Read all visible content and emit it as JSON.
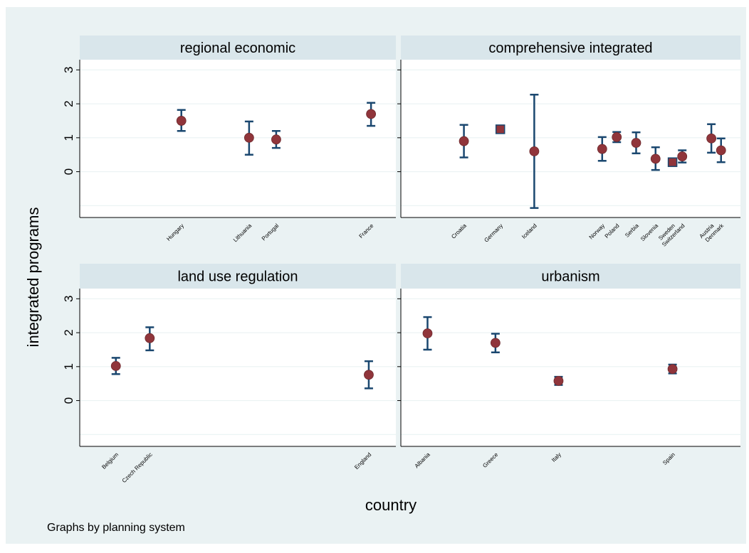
{
  "chart_data": {
    "type": "scatter",
    "y_label": "integrated programs",
    "x_label": "country",
    "note": "Graphs by planning system",
    "y_ticks": [
      0,
      1,
      2,
      3
    ],
    "panels": [
      {
        "title": "regional economic",
        "ylim": [
          -1.35,
          3.3
        ],
        "points": [
          {
            "country": "Hungary",
            "pos": 5,
            "y": 1.5,
            "lo": 1.2,
            "hi": 1.82,
            "marker": "circle"
          },
          {
            "country": "Lithuania",
            "pos": 8,
            "y": 1.0,
            "lo": 0.5,
            "hi": 1.48,
            "marker": "circle"
          },
          {
            "country": "Portugal",
            "pos": 9.2,
            "y": 0.95,
            "lo": 0.7,
            "hi": 1.2,
            "marker": "circle"
          },
          {
            "country": "France",
            "pos": 13.4,
            "y": 1.7,
            "lo": 1.35,
            "hi": 2.03,
            "marker": "circle"
          }
        ]
      },
      {
        "title": "comprehensive integrated",
        "ylim": [
          -1.35,
          3.3
        ],
        "points": [
          {
            "country": "Croatia",
            "pos": 3.1,
            "y": 0.9,
            "lo": 0.42,
            "hi": 1.38,
            "marker": "circle"
          },
          {
            "country": "Germany",
            "pos": 4.6,
            "y": 1.25,
            "lo": 1.25,
            "hi": 1.25,
            "marker": "square"
          },
          {
            "country": "Iceland",
            "pos": 6.0,
            "y": 0.6,
            "lo": -1.07,
            "hi": 2.27,
            "marker": "circle"
          },
          {
            "country": "Norway",
            "pos": 8.8,
            "y": 0.67,
            "lo": 0.32,
            "hi": 1.02,
            "marker": "circle"
          },
          {
            "country": "Poland",
            "pos": 9.4,
            "y": 1.02,
            "lo": 0.87,
            "hi": 1.17,
            "marker": "circle"
          },
          {
            "country": "Serbia",
            "pos": 10.2,
            "y": 0.85,
            "lo": 0.54,
            "hi": 1.16,
            "marker": "circle"
          },
          {
            "country": "Slovenia",
            "pos": 11.0,
            "y": 0.38,
            "lo": 0.05,
            "hi": 0.72,
            "marker": "circle"
          },
          {
            "country": "Sweden",
            "pos": 11.7,
            "y": 0.28,
            "lo": 0.22,
            "hi": 0.34,
            "marker": "square"
          },
          {
            "country": "Switzerland",
            "pos": 12.1,
            "y": 0.45,
            "lo": 0.27,
            "hi": 0.63,
            "marker": "circle"
          },
          {
            "country": "Austria",
            "pos": 13.3,
            "y": 0.98,
            "lo": 0.56,
            "hi": 1.4,
            "marker": "circle"
          },
          {
            "country": "Denmark",
            "pos": 13.7,
            "y": 0.63,
            "lo": 0.28,
            "hi": 0.98,
            "marker": "circle"
          }
        ]
      },
      {
        "title": "land use regulation",
        "ylim": [
          -1.35,
          3.3
        ],
        "points": [
          {
            "country": "Belgium",
            "pos": 2.1,
            "y": 1.02,
            "lo": 0.78,
            "hi": 1.26,
            "marker": "circle"
          },
          {
            "country": "Czech Republic",
            "pos": 3.6,
            "y": 1.84,
            "lo": 1.48,
            "hi": 2.16,
            "marker": "circle"
          },
          {
            "country": "England",
            "pos": 13.3,
            "y": 0.76,
            "lo": 0.36,
            "hi": 1.16,
            "marker": "circle"
          }
        ]
      },
      {
        "title": "urbanism",
        "ylim": [
          -1.35,
          3.3
        ],
        "points": [
          {
            "country": "Albania",
            "pos": 1.6,
            "y": 1.98,
            "lo": 1.5,
            "hi": 2.46,
            "marker": "circle"
          },
          {
            "country": "Greece",
            "pos": 4.4,
            "y": 1.7,
            "lo": 1.42,
            "hi": 1.97,
            "marker": "circle"
          },
          {
            "country": "Italy",
            "pos": 7.0,
            "y": 0.58,
            "lo": 0.46,
            "hi": 0.7,
            "marker": "circle"
          },
          {
            "country": "Spain",
            "pos": 11.7,
            "y": 0.93,
            "lo": 0.8,
            "hi": 1.06,
            "marker": "circle"
          }
        ]
      }
    ]
  },
  "colors": {
    "background": "#eaf2f3",
    "plot": "#ffffff",
    "title_bar": "#d9e6eb",
    "grid": "#eaf2f3",
    "errorbar": "#1a476f",
    "marker": "#90353b"
  }
}
